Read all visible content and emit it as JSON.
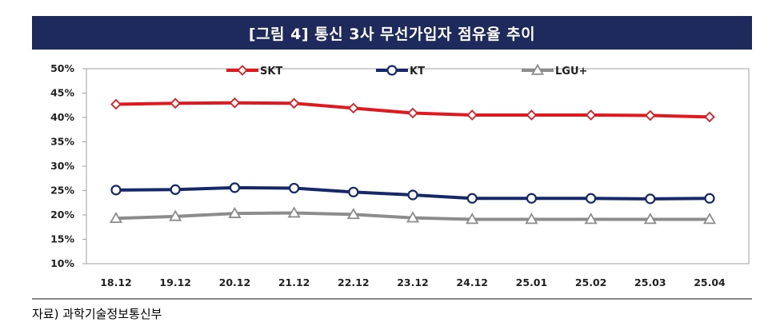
{
  "header": {
    "title": "[그림 4] 통신 3사 무선가입자 점유율 추이"
  },
  "footer": {
    "source": "자료) 과학기술정보통신부"
  },
  "chart_data": {
    "type": "line",
    "title": "[그림 4] 통신 3사 무선가입자 점유율 추이",
    "xlabel": "",
    "ylabel": "",
    "categories": [
      "18.12",
      "19.12",
      "20.12",
      "21.12",
      "22.12",
      "23.12",
      "24.12",
      "25.01",
      "25.02",
      "25.03",
      "25.04"
    ],
    "y_ticks": [
      "50%",
      "45%",
      "40%",
      "35%",
      "30%",
      "25%",
      "20%",
      "15%",
      "10%"
    ],
    "ylim": [
      10,
      50
    ],
    "grid": false,
    "legend_position": "top",
    "series": [
      {
        "name": "SKT",
        "color": "#e0191f",
        "marker": "diamond",
        "values": [
          42.7,
          42.9,
          43.0,
          42.9,
          41.9,
          40.9,
          40.5,
          40.5,
          40.5,
          40.4,
          40.1
        ]
      },
      {
        "name": "KT",
        "color": "#14286b",
        "marker": "circle",
        "values": [
          25.1,
          25.2,
          25.6,
          25.5,
          24.7,
          24.1,
          23.4,
          23.4,
          23.4,
          23.3,
          23.4
        ]
      },
      {
        "name": "LGU+",
        "color": "#8c8c8c",
        "marker": "triangle",
        "values": [
          19.3,
          19.7,
          20.3,
          20.4,
          20.1,
          19.4,
          19.1,
          19.1,
          19.1,
          19.1,
          19.1
        ]
      }
    ]
  }
}
